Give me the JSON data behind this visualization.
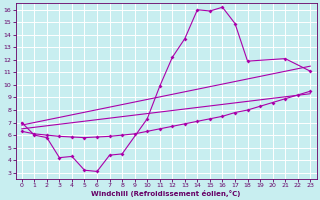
{
  "xlabel": "Windchill (Refroidissement éolien,°C)",
  "bg_color": "#c8eef0",
  "grid_color": "#ffffff",
  "line_color": "#aa00aa",
  "xlim": [
    -0.5,
    23.5
  ],
  "ylim": [
    2.5,
    16.5
  ],
  "xticks": [
    0,
    1,
    2,
    3,
    4,
    5,
    6,
    7,
    8,
    9,
    10,
    11,
    12,
    13,
    14,
    15,
    16,
    17,
    18,
    19,
    20,
    21,
    22,
    23
  ],
  "yticks": [
    3,
    4,
    5,
    6,
    7,
    8,
    9,
    10,
    11,
    12,
    13,
    14,
    15,
    16
  ],
  "series": [
    {
      "x": [
        0,
        1,
        2,
        3,
        4,
        5,
        6,
        7,
        8,
        10,
        11,
        12,
        13,
        14,
        15,
        16,
        17,
        18,
        21,
        23
      ],
      "y": [
        7.0,
        6.0,
        5.8,
        4.2,
        4.3,
        3.2,
        3.1,
        4.4,
        4.5,
        7.3,
        9.9,
        12.2,
        13.7,
        16.0,
        15.9,
        16.2,
        14.9,
        11.9,
        12.1,
        11.1
      ]
    },
    {
      "x": [
        0,
        1,
        2,
        3,
        4,
        5,
        6,
        7,
        8,
        9,
        10,
        11,
        12,
        13,
        14,
        15,
        16,
        17,
        18,
        19,
        20,
        21,
        22,
        23
      ],
      "y": [
        6.3,
        6.1,
        6.0,
        5.9,
        5.85,
        5.8,
        5.85,
        5.9,
        6.0,
        6.1,
        6.3,
        6.5,
        6.7,
        6.9,
        7.1,
        7.3,
        7.5,
        7.8,
        8.0,
        8.3,
        8.6,
        8.9,
        9.2,
        9.5
      ]
    },
    {
      "x": [
        0,
        23
      ],
      "y": [
        6.8,
        11.5
      ]
    },
    {
      "x": [
        0,
        23
      ],
      "y": [
        6.5,
        9.3
      ]
    }
  ]
}
